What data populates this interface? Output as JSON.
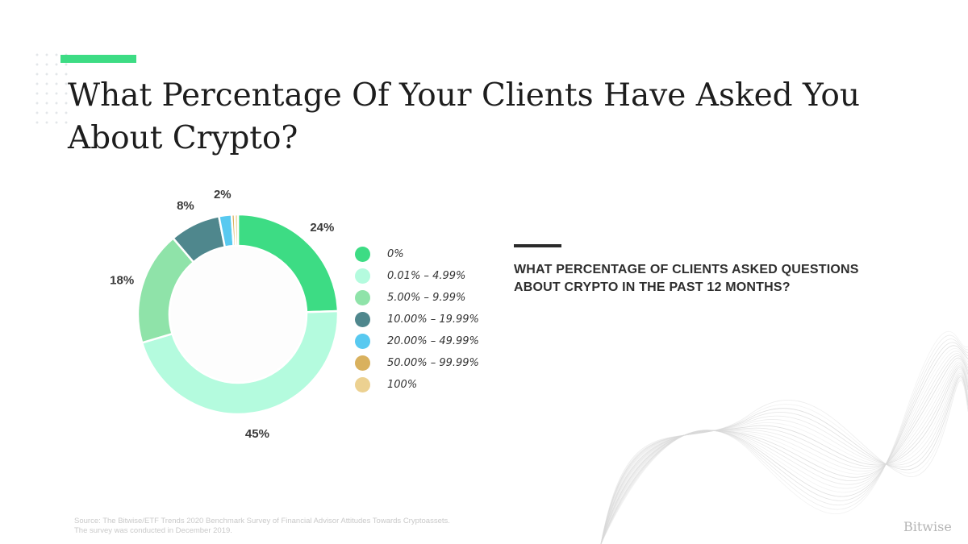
{
  "page": {
    "title": "What Percentage Of Your Clients Have Asked You About Crypto?",
    "question": "WHAT PERCENTAGE OF CLIENTS ASKED QUESTIONS ABOUT CRYPTO IN THE PAST 12 MONTHS?",
    "source_line1": "Source: The Bitwise/ETF Trends 2020 Benchmark Survey of Financial Advisor Attitudes Towards Cryptoassets.",
    "source_line2": "The survey was conducted in December 2019.",
    "brand": "Bitwise",
    "accent_color": "#3ddc84"
  },
  "chart_data": {
    "type": "pie",
    "variant": "donut",
    "title": "What Percentage Of Your Clients Have Asked You About Crypto?",
    "categories": [
      "0%",
      "0.01% – 4.99%",
      "5.00% – 9.99%",
      "10.00% – 19.99%",
      "20.00% – 49.99%",
      "50.00% – 99.99%",
      "100%"
    ],
    "values": [
      24,
      45,
      18,
      8,
      2,
      0.5,
      0.5
    ],
    "labels": [
      "24%",
      "45%",
      "18%",
      "8%",
      "2%",
      "",
      ""
    ],
    "colors": [
      "#3ddc84",
      "#b4fbde",
      "#8fe3a9",
      "#4f878d",
      "#58c9f0",
      "#d9b15e",
      "#ecd191"
    ],
    "legend_position": "right"
  }
}
